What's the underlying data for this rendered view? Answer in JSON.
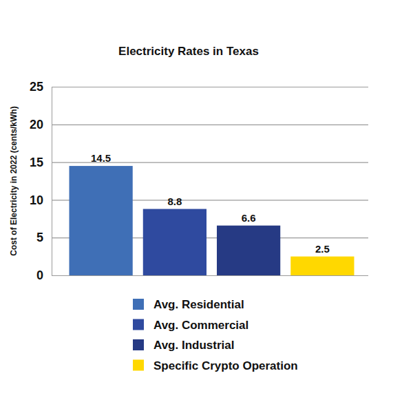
{
  "chart_data": {
    "type": "bar",
    "title": "Electricity Rates in Texas",
    "ylabel": "Cost of Electricity in 2022 (cents/kWh)",
    "categories": [
      "Avg. Residential",
      "Avg. Commercial",
      "Avg. Industrial",
      "Specific Crypto Operation"
    ],
    "values": [
      14.5,
      8.8,
      6.6,
      2.5
    ],
    "colors": [
      "#3f6fb6",
      "#2f4a9f",
      "#263a84",
      "#ffd800"
    ],
    "ylim": [
      0,
      25
    ],
    "yticks": [
      0,
      5,
      10,
      15,
      20,
      25
    ],
    "grid": true,
    "data_labels": true,
    "legend": "bottom",
    "tick_labels": "y"
  }
}
